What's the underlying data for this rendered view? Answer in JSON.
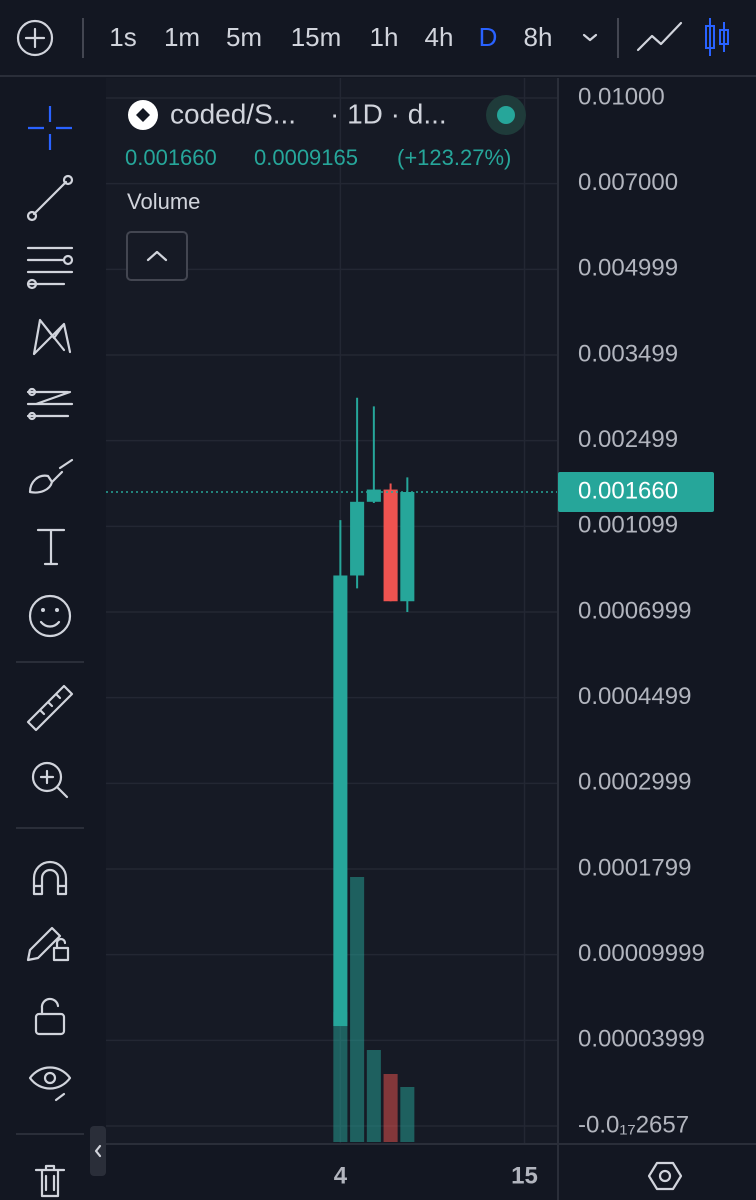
{
  "toolbar": {
    "intervals": [
      "1s",
      "1m",
      "5m",
      "15m",
      "1h",
      "4h",
      "D",
      "8h"
    ],
    "active_interval": "D"
  },
  "legend": {
    "symbol": "coded/S...",
    "meta": "· 1D · d...",
    "price": "0.001660",
    "change": "0.0009165",
    "change_pct": "(+123.27%)",
    "volume_label": "Volume"
  },
  "chart_data": {
    "type": "candlestick",
    "x": [
      4,
      5,
      6,
      7,
      8
    ],
    "open": [
      5e-05,
      0.00087,
      0.0015,
      0.0017,
      0.00075
    ],
    "high": [
      0.0012,
      0.003,
      0.0029,
      0.0018,
      0.0019
    ],
    "low": [
      5e-05,
      0.00081,
      0.00148,
      0.00075,
      0.0007
    ],
    "close": [
      0.00087,
      0.0015,
      0.0017,
      0.00075,
      0.00166
    ],
    "volume": [
      130,
      265,
      92,
      68,
      55
    ],
    "up_color": "#26a69a",
    "down_color": "#ef5350",
    "xlim": [
      -10,
      17
    ],
    "xticks": [
      4,
      15
    ],
    "ylim": [
      0.01,
      -2.657e-18
    ],
    "yticks": [
      {
        "value": 0.01,
        "label": "0.01000"
      },
      {
        "value": 0.007,
        "label": "0.007000"
      },
      0.004999,
      0.003499,
      0.002499,
      0.001099,
      0.0006999,
      0.0004499,
      0.0002999,
      0.0001799,
      9.999e-05,
      3.999e-05,
      {
        "value": -2.657e-18,
        "label": "-0.0₁₇2657"
      }
    ],
    "last_price": {
      "value": 0.00166,
      "label": "0.001660"
    },
    "grid": true
  }
}
